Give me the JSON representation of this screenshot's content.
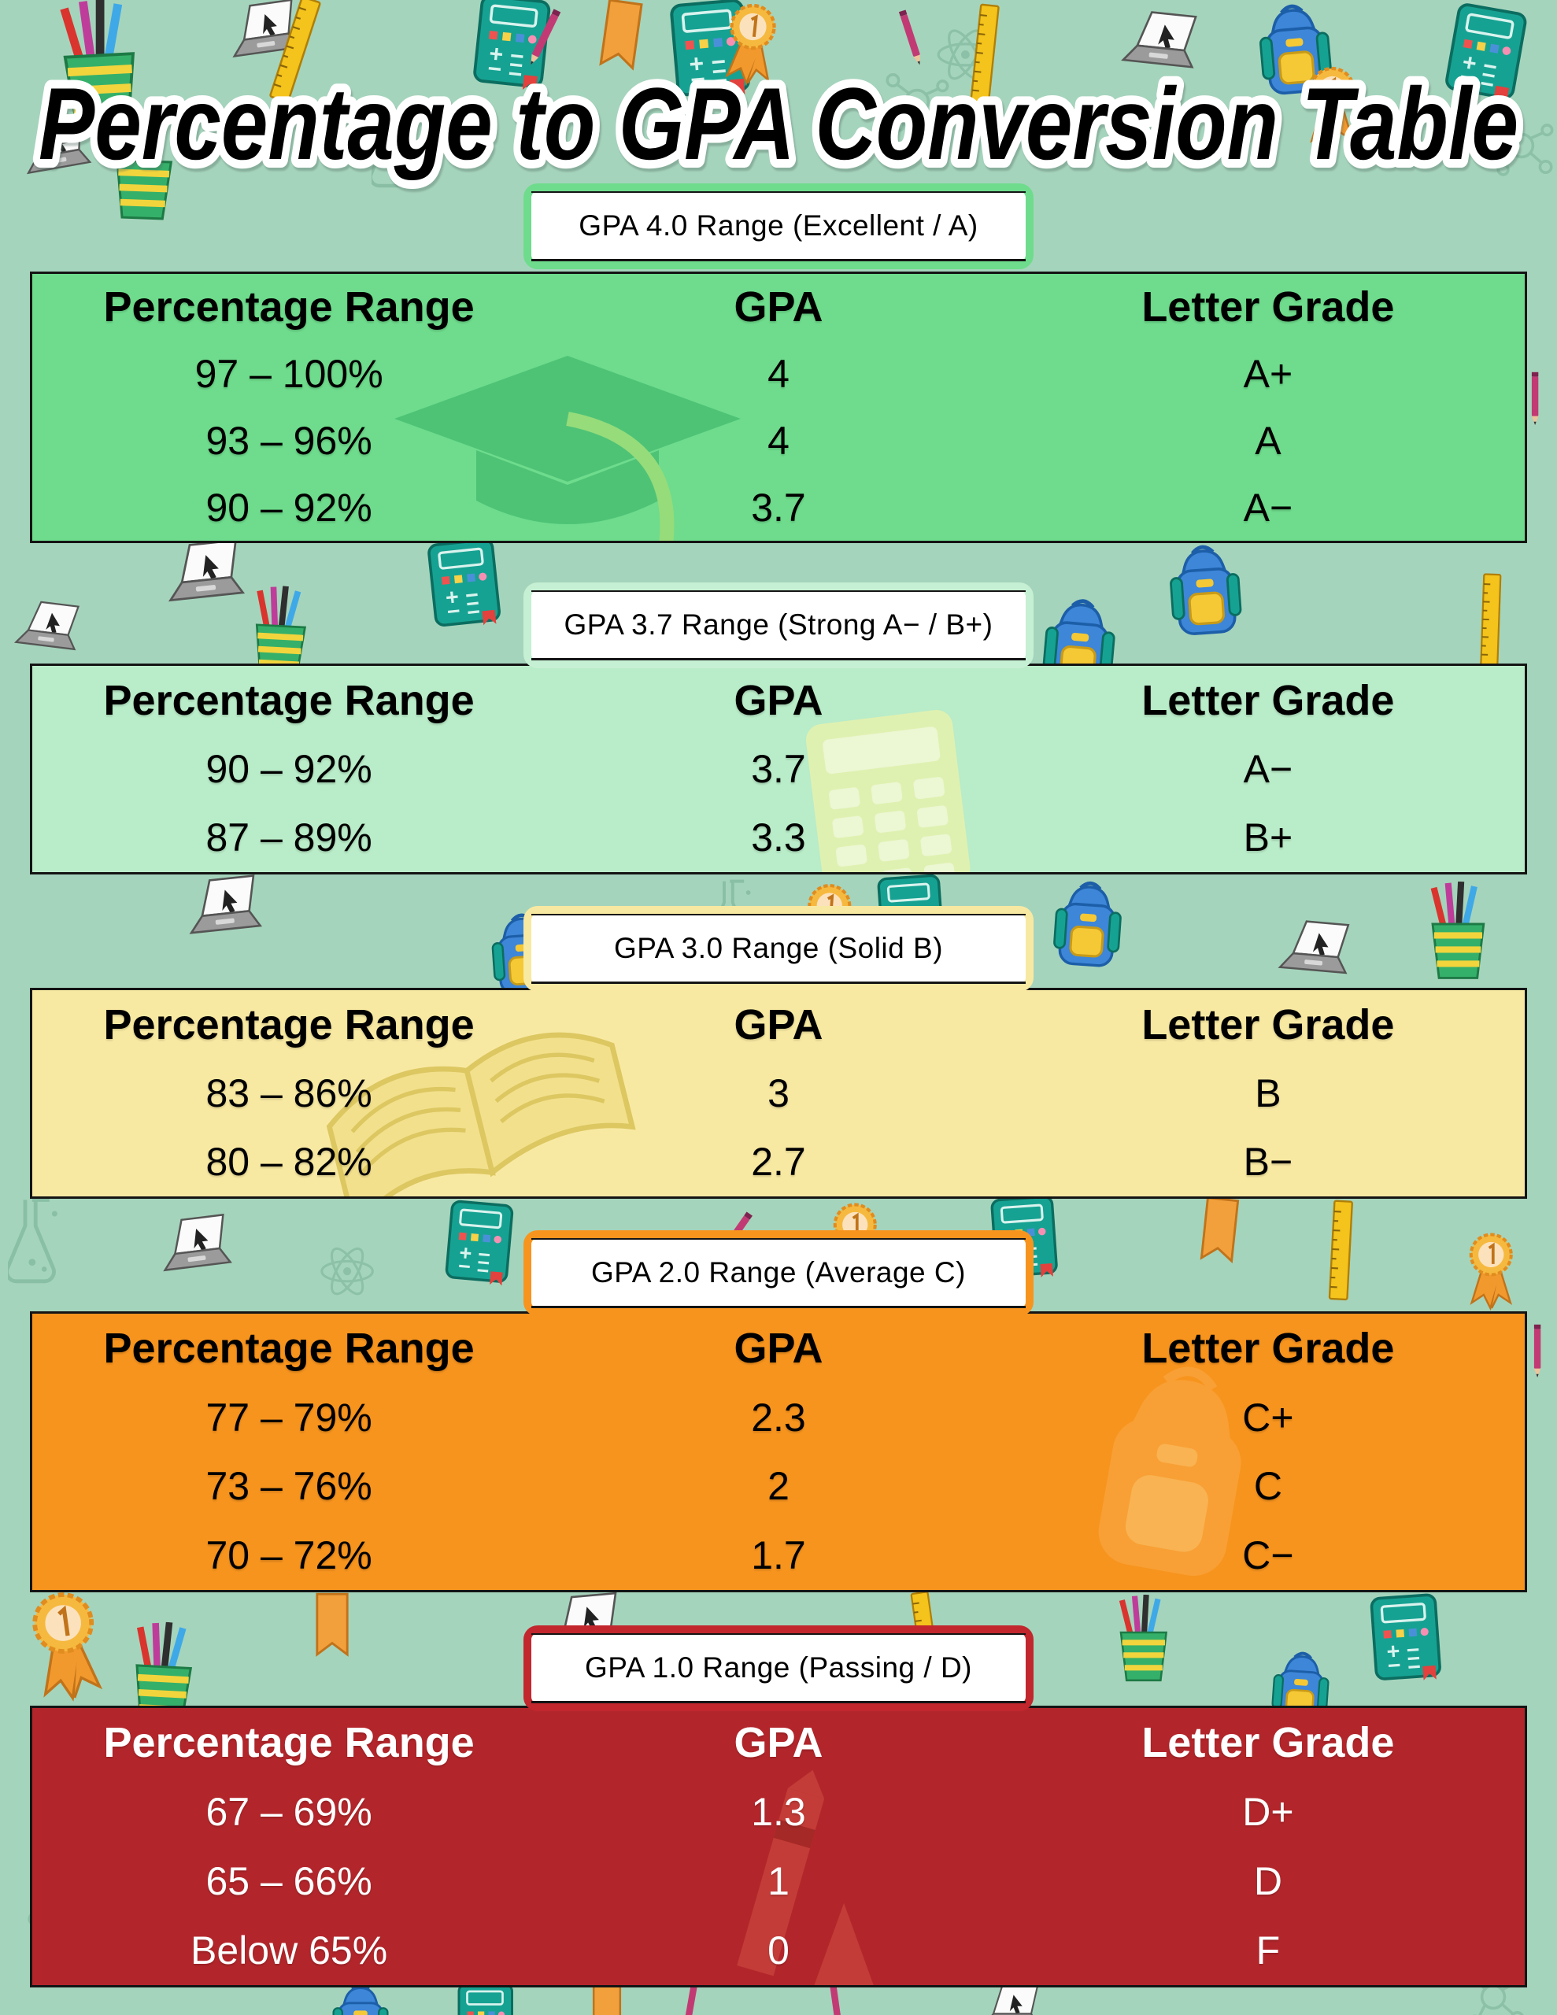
{
  "page": {
    "title": "Percentage to GPA Conversion Table"
  },
  "columns": [
    "Percentage Range",
    "GPA",
    "Letter Grade"
  ],
  "colors": {
    "background": "#a5d4bc",
    "table_border": "#141414",
    "section_bgs": [
      "#6edc8c",
      "#b9ecc8",
      "#f8e9a2",
      "#f7941e",
      "#b2262b"
    ],
    "header_borders": [
      "#6edc8c",
      "#c6f0d3",
      "#f8e9a2",
      "#f7941e",
      "#c1272d"
    ],
    "section_text": [
      "#000000",
      "#000000",
      "#000000",
      "#000000",
      "#ffffff"
    ]
  },
  "sections": [
    {
      "label": "GPA 4.0 Range (Excellent / A)",
      "watermark": "graduation-cap-icon",
      "rows": [
        [
          "97 – 100%",
          "4",
          "A+"
        ],
        [
          "93 – 96%",
          "4",
          "A"
        ],
        [
          "90 – 92%",
          "3.7",
          "A−"
        ]
      ]
    },
    {
      "label": "GPA 3.7 Range (Strong A− / B+)",
      "watermark": "calculator-icon",
      "rows": [
        [
          "90 – 92%",
          "3.7",
          "A−"
        ],
        [
          "87 – 89%",
          "3.3",
          "B+"
        ]
      ]
    },
    {
      "label": "GPA 3.0 Range (Solid B)",
      "watermark": "open-book-icon",
      "rows": [
        [
          "83 – 86%",
          "3",
          "B"
        ],
        [
          "80 – 82%",
          "2.7",
          "B−"
        ]
      ]
    },
    {
      "label": "GPA 2.0 Range (Average C)",
      "watermark": "backpack-icon",
      "rows": [
        [
          "77 – 79%",
          "2.3",
          "C+"
        ],
        [
          "73 – 76%",
          "2",
          "C"
        ],
        [
          "70 – 72%",
          "1.7",
          "C−"
        ]
      ]
    },
    {
      "label": "GPA 1.0 Range (Passing / D)",
      "watermark": "crayon-icon",
      "rows": [
        [
          "67 – 69%",
          "1.3",
          "D+"
        ],
        [
          "65 – 66%",
          "1",
          "D"
        ],
        [
          "Below 65%",
          "0",
          "F"
        ]
      ]
    }
  ],
  "decor_doodles": [
    "pencil-cup-icon",
    "laptop-icon",
    "ruler-icon",
    "notebook-icon",
    "backpack-icon",
    "award-rosette-icon",
    "ribbon-icon",
    "pen-icon",
    "flask-icon",
    "atom-icon",
    "molecule-icon"
  ]
}
